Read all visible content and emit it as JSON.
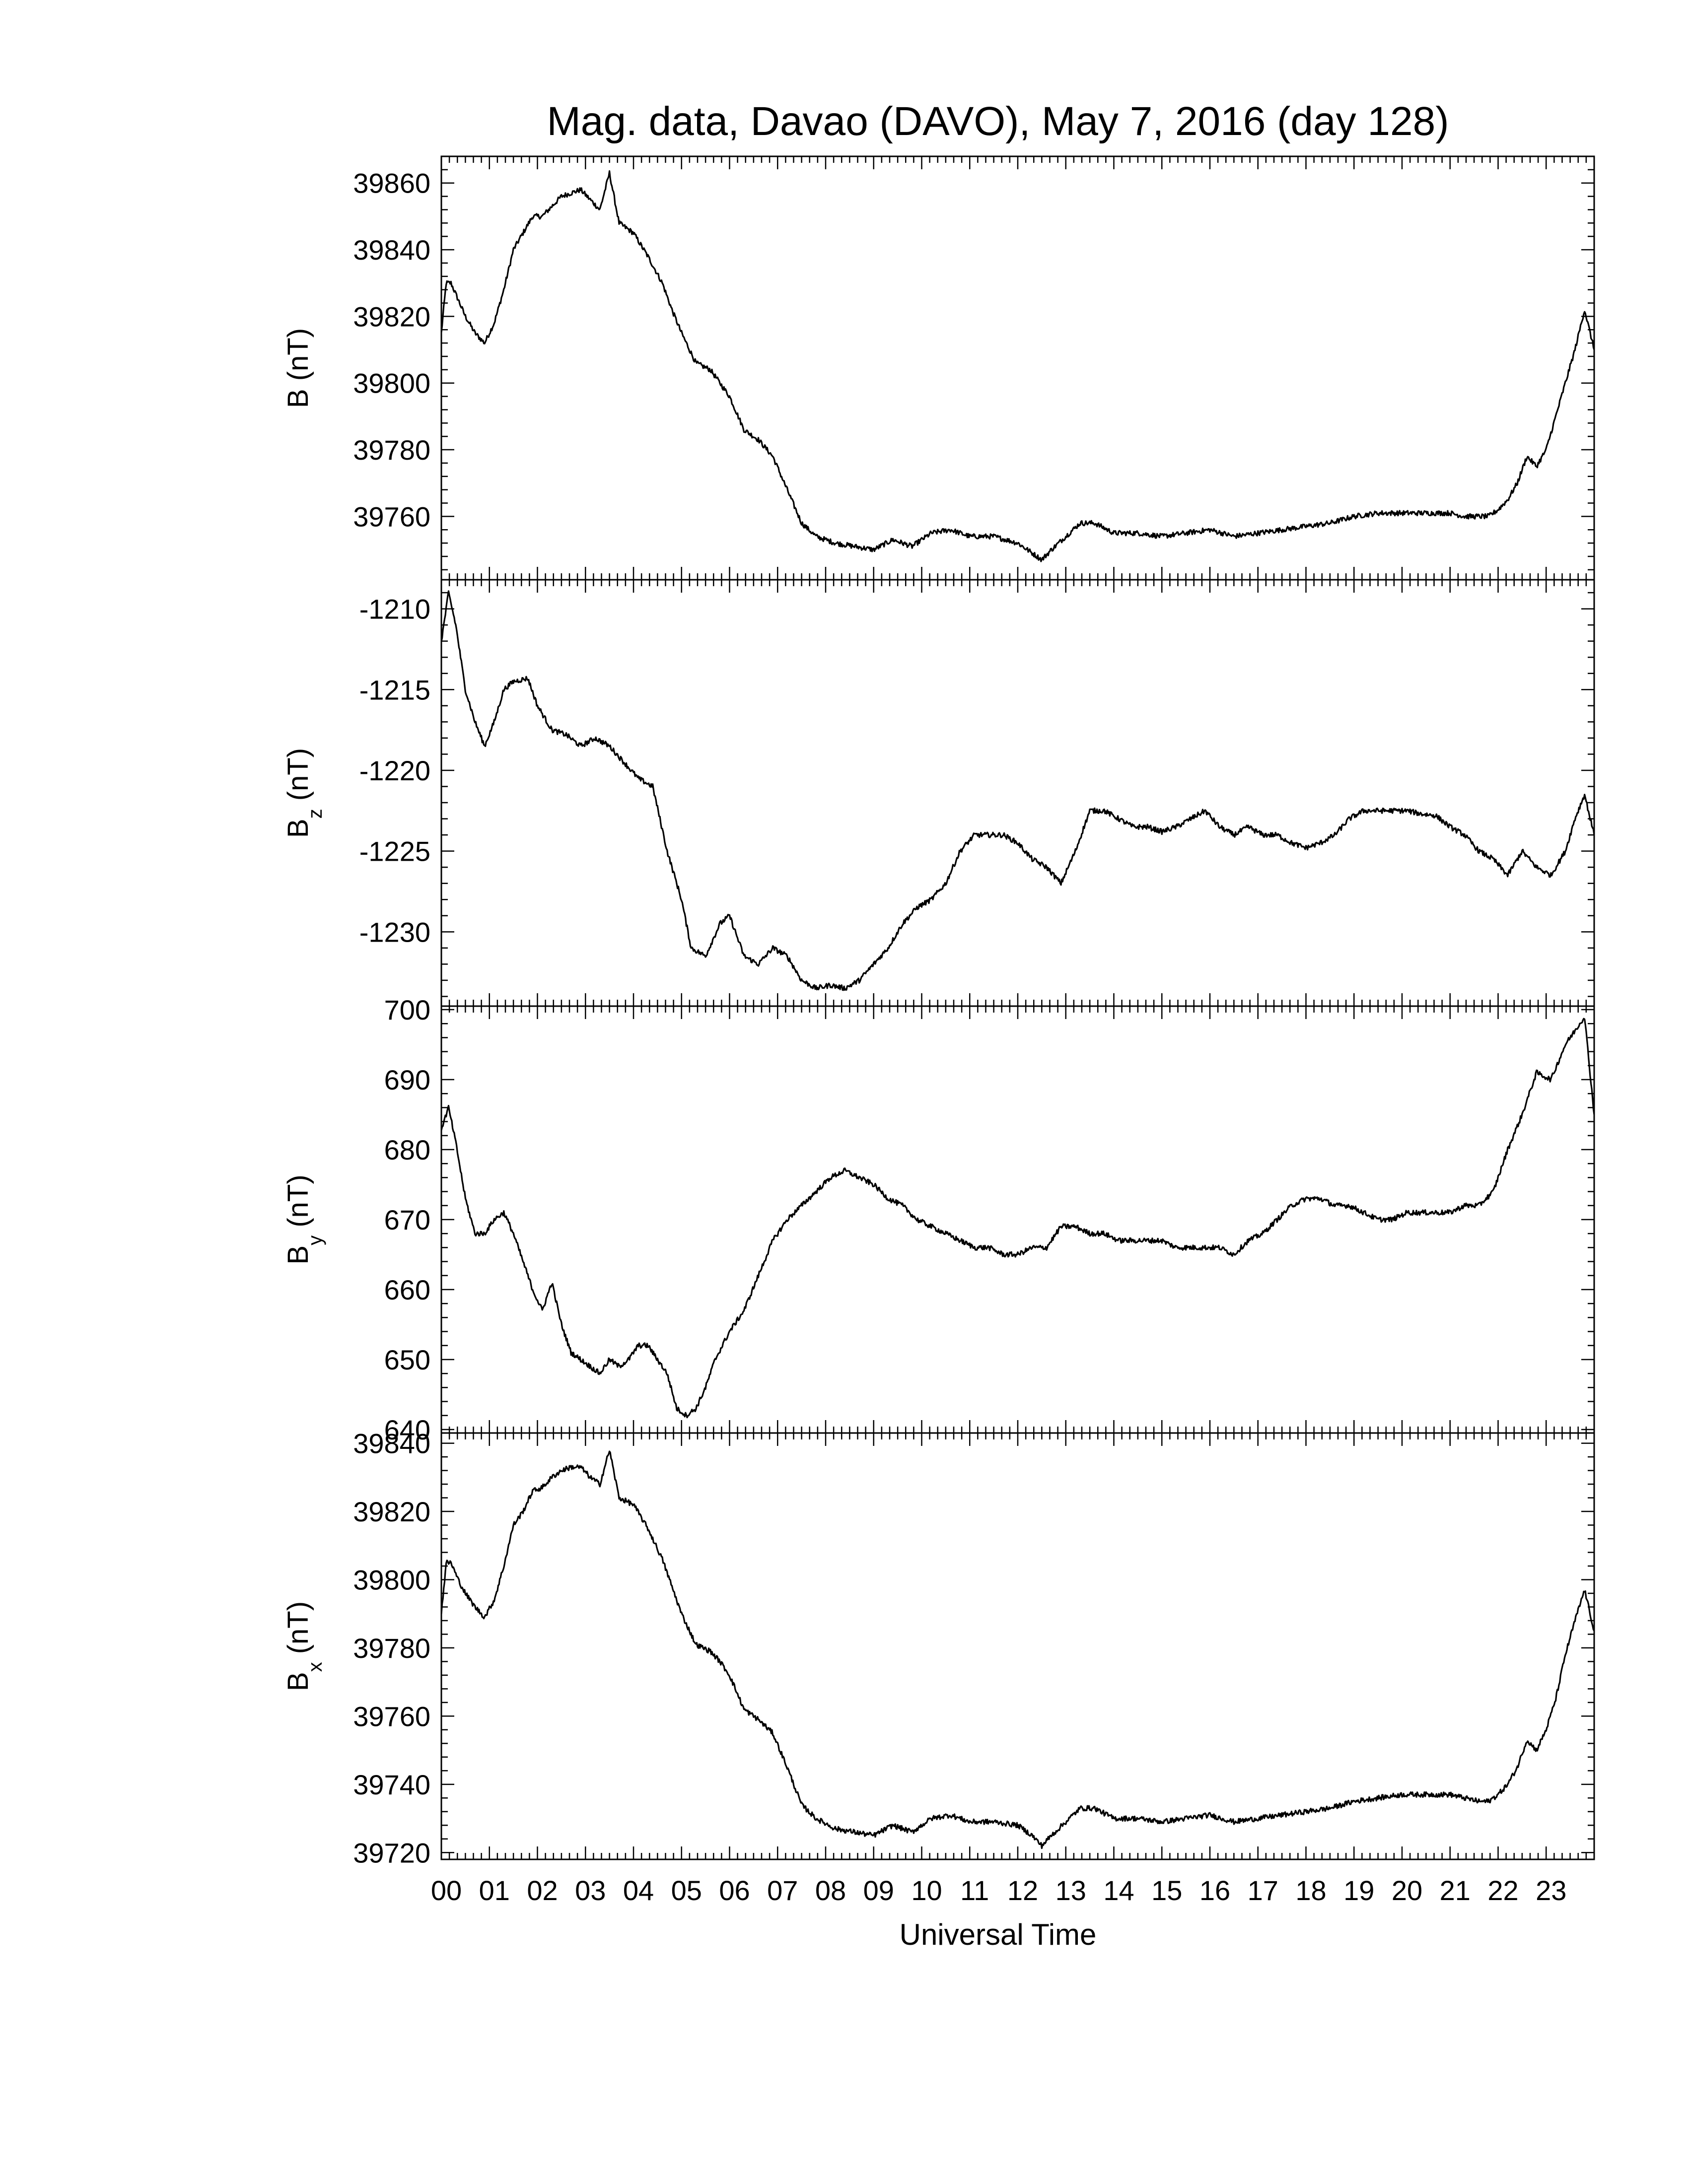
{
  "title": "Mag. data, Davao (DAVO), May 7, 2016 (day 128)",
  "xlabel": "Universal Time",
  "x_tick_labels": [
    "00",
    "01",
    "02",
    "03",
    "04",
    "05",
    "06",
    "07",
    "08",
    "09",
    "10",
    "11",
    "12",
    "13",
    "14",
    "15",
    "16",
    "17",
    "18",
    "19",
    "20",
    "21",
    "22",
    "23"
  ],
  "line_color": "#000000",
  "chart_data": [
    {
      "type": "line",
      "panel": "B",
      "ylabel": {
        "base": "B",
        "sub": "",
        "unit": " (nT)"
      },
      "ylim": [
        39741,
        39868
      ],
      "yticks": [
        39760,
        39780,
        39800,
        39820,
        39840,
        39860
      ],
      "xlim": [
        0,
        24
      ],
      "grid": false,
      "x": [
        0,
        0.1,
        0.2,
        0.35,
        0.5,
        0.7,
        0.9,
        1.1,
        1.3,
        1.5,
        1.7,
        1.9,
        2.1,
        2.3,
        2.5,
        2.7,
        2.9,
        3.1,
        3.3,
        3.5,
        3.7,
        4.0,
        4.3,
        4.6,
        4.8,
        5.0,
        5.3,
        5.6,
        5.8,
        6.0,
        6.3,
        6.6,
        6.9,
        7.2,
        7.5,
        7.8,
        8.2,
        8.6,
        9.0,
        9.4,
        9.8,
        10.2,
        10.6,
        11.0,
        11.5,
        12.0,
        12.3,
        12.5,
        12.7,
        13.0,
        13.3,
        13.6,
        14.0,
        14.5,
        15.0,
        15.5,
        16.0,
        16.5,
        17.0,
        17.5,
        18.0,
        18.5,
        19.0,
        19.5,
        20.0,
        20.5,
        21.0,
        21.3,
        21.6,
        21.8,
        22.0,
        22.2,
        22.4,
        22.6,
        22.8,
        23.0,
        23.2,
        23.4,
        23.6,
        23.8,
        24.0
      ],
      "y": [
        39815,
        39830,
        39830,
        39825,
        39820,
        39815,
        39812,
        39818,
        39828,
        39840,
        39845,
        39850,
        39850,
        39853,
        39856,
        39857,
        39858,
        39855,
        39852,
        39863,
        39848,
        39845,
        39838,
        39830,
        39822,
        39815,
        39806,
        39804,
        39800,
        39796,
        39786,
        39783,
        39778,
        39768,
        39758,
        39754,
        39752,
        39751,
        39750,
        39753,
        39751,
        39755,
        39756,
        39754,
        39754,
        39752,
        39749,
        39747,
        39750,
        39754,
        39758,
        39758,
        39755,
        39755,
        39754,
        39755,
        39756,
        39754,
        39755,
        39756,
        39757,
        39758,
        39760,
        39761,
        39761,
        39761,
        39761,
        39760,
        39760,
        39760,
        39762,
        39765,
        39770,
        39778,
        39775,
        39780,
        39790,
        39800,
        39810,
        39822,
        39810
      ]
    },
    {
      "type": "line",
      "panel": "Bz",
      "ylabel": {
        "base": "B",
        "sub": "z",
        "unit": " (nT)"
      },
      "ylim": [
        -1234.6,
        -1208.2
      ],
      "yticks": [
        -1210,
        -1215,
        -1220,
        -1225,
        -1230
      ],
      "xlim": [
        0,
        24
      ],
      "grid": false,
      "x": [
        0,
        0.15,
        0.3,
        0.5,
        0.7,
        0.9,
        1.1,
        1.3,
        1.5,
        1.8,
        2.0,
        2.3,
        2.6,
        2.9,
        3.2,
        3.5,
        3.8,
        4.1,
        4.4,
        4.7,
        5.0,
        5.2,
        5.5,
        5.8,
        6.0,
        6.3,
        6.6,
        6.9,
        7.2,
        7.5,
        7.8,
        8.1,
        8.4,
        8.7,
        9.0,
        9.3,
        9.6,
        9.9,
        10.2,
        10.5,
        10.8,
        11.1,
        11.4,
        11.7,
        12.0,
        12.3,
        12.6,
        12.9,
        13.2,
        13.5,
        13.8,
        14.1,
        14.4,
        14.7,
        15.0,
        15.3,
        15.6,
        15.9,
        16.2,
        16.5,
        16.8,
        17.1,
        17.4,
        17.7,
        18.0,
        18.3,
        18.6,
        18.9,
        19.2,
        19.5,
        19.8,
        20.1,
        20.4,
        20.7,
        21.0,
        21.3,
        21.6,
        21.9,
        22.2,
        22.5,
        22.8,
        23.1,
        23.4,
        23.6,
        23.8,
        24.0
      ],
      "y": [
        -1212,
        -1209,
        -1211,
        -1215,
        -1217,
        -1218.5,
        -1217,
        -1215,
        -1214.5,
        -1214.3,
        -1216,
        -1217.5,
        -1217.8,
        -1218.5,
        -1218,
        -1218.5,
        -1219.5,
        -1220.5,
        -1221,
        -1225,
        -1228,
        -1231,
        -1231.5,
        -1229.5,
        -1229,
        -1231.5,
        -1232,
        -1231,
        -1231.5,
        -1233,
        -1233.5,
        -1233.3,
        -1233.5,
        -1233,
        -1232,
        -1231,
        -1229.5,
        -1228.5,
        -1228,
        -1227,
        -1225,
        -1224,
        -1224,
        -1224,
        -1224.5,
        -1225.5,
        -1226,
        -1227,
        -1225,
        -1222.5,
        -1222.5,
        -1223,
        -1223.5,
        -1223.5,
        -1223.8,
        -1223.5,
        -1223,
        -1222.5,
        -1223.5,
        -1224,
        -1223.5,
        -1224,
        -1224,
        -1224.5,
        -1224.8,
        -1224.5,
        -1224,
        -1223,
        -1222.5,
        -1222.5,
        -1222.5,
        -1222.5,
        -1222.7,
        -1222.8,
        -1223.5,
        -1224,
        -1225,
        -1225.5,
        -1226.5,
        -1225,
        -1226,
        -1226.5,
        -1225,
        -1223,
        -1221.5,
        -1224
      ]
    },
    {
      "type": "line",
      "panel": "By",
      "ylabel": {
        "base": "B",
        "sub": "y",
        "unit": " (nT)"
      },
      "ylim": [
        639.5,
        700.5
      ],
      "yticks": [
        640,
        650,
        660,
        670,
        680,
        690,
        700
      ],
      "xlim": [
        0,
        24
      ],
      "grid": false,
      "x": [
        0,
        0.15,
        0.3,
        0.5,
        0.7,
        0.9,
        1.1,
        1.3,
        1.5,
        1.7,
        1.9,
        2.1,
        2.3,
        2.5,
        2.7,
        2.9,
        3.1,
        3.3,
        3.5,
        3.7,
        3.9,
        4.1,
        4.3,
        4.5,
        4.7,
        4.9,
        5.1,
        5.3,
        5.5,
        5.7,
        6.0,
        6.3,
        6.6,
        6.9,
        7.2,
        7.5,
        7.8,
        8.1,
        8.4,
        8.7,
        9.0,
        9.3,
        9.6,
        9.9,
        10.2,
        10.5,
        10.8,
        11.1,
        11.4,
        11.7,
        12.0,
        12.3,
        12.6,
        12.9,
        13.2,
        13.5,
        13.8,
        14.1,
        14.4,
        14.7,
        15.0,
        15.3,
        15.6,
        15.9,
        16.2,
        16.5,
        16.8,
        17.1,
        17.4,
        17.7,
        18.0,
        18.3,
        18.6,
        18.9,
        19.2,
        19.5,
        19.8,
        20.1,
        20.4,
        20.7,
        21.0,
        21.3,
        21.6,
        21.9,
        22.2,
        22.5,
        22.8,
        23.1,
        23.4,
        23.6,
        23.8,
        24.0
      ],
      "y": [
        683,
        686,
        681,
        673,
        668,
        668,
        670,
        671,
        668,
        664,
        660,
        657,
        661,
        655,
        651,
        650,
        649,
        648,
        650,
        649,
        650,
        652,
        652,
        650,
        648,
        643,
        642,
        643,
        646,
        650,
        654,
        657,
        662,
        667,
        670,
        672,
        674,
        676,
        677,
        676,
        675,
        673,
        672,
        670,
        669,
        668,
        667,
        666,
        666,
        665,
        665,
        666,
        666,
        669,
        669,
        668,
        668,
        667,
        667,
        667,
        667,
        666,
        666,
        666,
        666,
        665,
        667,
        668,
        670,
        672,
        673,
        673,
        672,
        672,
        671,
        670,
        670,
        671,
        671,
        671,
        671,
        672,
        672,
        674,
        680,
        685,
        691,
        690,
        695,
        697,
        699,
        685
      ]
    },
    {
      "type": "line",
      "panel": "Bx",
      "ylabel": {
        "base": "B",
        "sub": "x",
        "unit": " (nT)"
      },
      "ylim": [
        39718,
        39843
      ],
      "yticks": [
        39720,
        39740,
        39760,
        39780,
        39800,
        39820,
        39840
      ],
      "xlim": [
        0,
        24
      ],
      "grid": false,
      "x": [
        0,
        0.1,
        0.2,
        0.35,
        0.5,
        0.7,
        0.9,
        1.1,
        1.3,
        1.5,
        1.7,
        1.9,
        2.1,
        2.3,
        2.5,
        2.7,
        2.9,
        3.1,
        3.3,
        3.5,
        3.7,
        4.0,
        4.3,
        4.6,
        4.8,
        5.0,
        5.3,
        5.6,
        5.8,
        6.0,
        6.3,
        6.6,
        6.9,
        7.2,
        7.5,
        7.8,
        8.2,
        8.6,
        9.0,
        9.4,
        9.8,
        10.2,
        10.6,
        11.0,
        11.5,
        12.0,
        12.3,
        12.5,
        12.7,
        13.0,
        13.3,
        13.6,
        14.0,
        14.5,
        15.0,
        15.5,
        16.0,
        16.5,
        17.0,
        17.5,
        18.0,
        18.5,
        19.0,
        19.5,
        20.0,
        20.5,
        21.0,
        21.3,
        21.6,
        21.8,
        22.0,
        22.2,
        22.4,
        22.6,
        22.8,
        23.0,
        23.2,
        23.4,
        23.6,
        23.8,
        24.0
      ],
      "y": [
        39790,
        39805,
        39805,
        39800,
        39796,
        39792,
        39789,
        39794,
        39804,
        39816,
        39820,
        39826,
        39827,
        39830,
        39832,
        39833,
        39833,
        39830,
        39828,
        39838,
        39824,
        39822,
        39815,
        39806,
        39798,
        39790,
        39781,
        39779,
        39776,
        39772,
        39762,
        39759,
        39755,
        39745,
        39734,
        39730,
        39727,
        39726,
        39725,
        39728,
        39726,
        39730,
        39731,
        39729,
        39729,
        39728,
        39725,
        39722,
        39725,
        39729,
        39733,
        39733,
        39730,
        39730,
        39729,
        39730,
        39731,
        39729,
        39730,
        39731,
        39732,
        39733,
        39735,
        39736,
        39737,
        39737,
        39737,
        39736,
        39735,
        39735,
        39737,
        39740,
        39745,
        39753,
        39750,
        39756,
        39765,
        39778,
        39788,
        39797,
        39785
      ]
    }
  ]
}
